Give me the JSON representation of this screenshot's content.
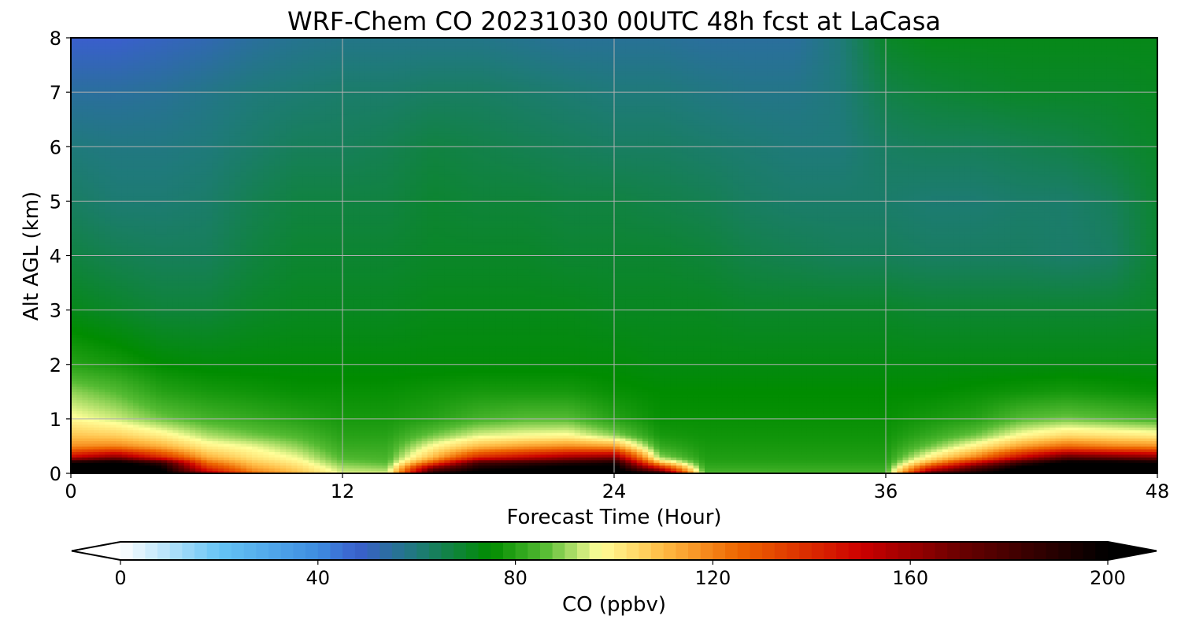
{
  "chart_data": {
    "type": "heatmap",
    "title": "WRF-Chem CO  20231030 00UTC 48h fcst at LaCasa",
    "xlabel": "Forecast Time (Hour)",
    "ylabel": "Alt AGL (km)",
    "xlim": [
      0,
      48
    ],
    "ylim": [
      0,
      8
    ],
    "x_ticks": [
      0,
      12,
      24,
      36,
      48
    ],
    "x_tick_labels": [
      "0",
      "12",
      "24",
      "36",
      "48"
    ],
    "y_ticks": [
      0,
      1,
      2,
      3,
      4,
      5,
      6,
      7,
      8
    ],
    "y_tick_labels": [
      "0",
      "1",
      "2",
      "3",
      "4",
      "5",
      "6",
      "7",
      "8"
    ],
    "grid": true,
    "colorbar": {
      "label": "CO  (ppbv)",
      "orientation": "horizontal",
      "placement": "bottom",
      "vmin": 0,
      "vmax": 200,
      "extend": "both",
      "ticks": [
        0,
        40,
        80,
        120,
        160,
        200
      ],
      "tick_labels": [
        "0",
        "40",
        "80",
        "120",
        "160",
        "200"
      ],
      "color_stops": [
        {
          "value": 0,
          "color": "#ffffff"
        },
        {
          "value": 20,
          "color": "#66c4f5"
        },
        {
          "value": 40,
          "color": "#3d8de0"
        },
        {
          "value": 48,
          "color": "#3a5fcd"
        },
        {
          "value": 60,
          "color": "#1f7a7a"
        },
        {
          "value": 75,
          "color": "#008c00"
        },
        {
          "value": 86,
          "color": "#55bb33"
        },
        {
          "value": 97,
          "color": "#ffff99"
        },
        {
          "value": 110,
          "color": "#ffbb44"
        },
        {
          "value": 125,
          "color": "#ee6600"
        },
        {
          "value": 150,
          "color": "#cc0000"
        },
        {
          "value": 170,
          "color": "#6a0000"
        },
        {
          "value": 200,
          "color": "#000000"
        }
      ]
    },
    "field": {
      "x_hours": [
        0,
        2,
        4,
        6,
        8,
        10,
        12,
        14,
        16,
        18,
        20,
        22,
        24,
        26,
        28,
        30,
        32,
        34,
        36,
        38,
        40,
        42,
        44,
        46,
        48
      ],
      "alt_km": [
        0,
        0.1,
        0.2,
        0.3,
        0.5,
        0.7,
        1.0,
        1.5,
        2.0,
        3.0,
        4.0,
        5.0,
        6.0,
        7.0,
        8.0
      ],
      "co_ppbv": [
        [
          210,
          210,
          205,
          160,
          125,
          110,
          95,
          95,
          190,
          205,
          205,
          210,
          210,
          190,
          85,
          85,
          84,
          84,
          84,
          175,
          195,
          210,
          210,
          210,
          210
        ],
        [
          205,
          210,
          200,
          140,
          115,
          105,
          92,
          90,
          170,
          195,
          200,
          205,
          205,
          150,
          82,
          82,
          82,
          82,
          82,
          145,
          180,
          205,
          210,
          210,
          210
        ],
        [
          200,
          205,
          185,
          125,
          108,
          100,
          88,
          86,
          130,
          180,
          185,
          190,
          195,
          110,
          80,
          80,
          80,
          80,
          80,
          115,
          150,
          185,
          205,
          205,
          200
        ],
        [
          150,
          165,
          140,
          112,
          102,
          96,
          85,
          84,
          110,
          140,
          150,
          160,
          165,
          90,
          79,
          79,
          79,
          79,
          79,
          100,
          120,
          150,
          175,
          170,
          165
        ],
        [
          118,
          120,
          112,
          100,
          96,
          90,
          82,
          82,
          98,
          110,
          115,
          118,
          115,
          82,
          78,
          78,
          78,
          78,
          78,
          88,
          100,
          115,
          125,
          120,
          118
        ],
        [
          108,
          106,
          100,
          92,
          88,
          85,
          80,
          80,
          88,
          95,
          97,
          98,
          90,
          78,
          77,
          77,
          77,
          77,
          77,
          82,
          88,
          98,
          104,
          102,
          100
        ],
        [
          98,
          94,
          88,
          84,
          82,
          80,
          78,
          78,
          80,
          84,
          86,
          86,
          80,
          76,
          76,
          76,
          76,
          76,
          76,
          78,
          80,
          86,
          88,
          86,
          84
        ],
        [
          90,
          86,
          80,
          78,
          77,
          76,
          76,
          76,
          77,
          78,
          78,
          78,
          76,
          75,
          75,
          75,
          75,
          75,
          75,
          75,
          76,
          77,
          78,
          77,
          76
        ],
        [
          80,
          78,
          75,
          74,
          74,
          74,
          74,
          74,
          74,
          74,
          74,
          74,
          74,
          73,
          73,
          73,
          73,
          73,
          73,
          73,
          73,
          73,
          73,
          73,
          73
        ],
        [
          72,
          70,
          68,
          68,
          70,
          71,
          71,
          71,
          72,
          72,
          72,
          72,
          71,
          71,
          71,
          70,
          70,
          70,
          70,
          69,
          69,
          69,
          69,
          69,
          70
        ],
        [
          67,
          65,
          64,
          64,
          67,
          69,
          69,
          69,
          70,
          70,
          70,
          69,
          69,
          69,
          68,
          66,
          65,
          64,
          64,
          63,
          63,
          63,
          62,
          63,
          69
        ],
        [
          63,
          61,
          61,
          62,
          65,
          67,
          67,
          67,
          69,
          68,
          68,
          67,
          67,
          66,
          65,
          63,
          62,
          62,
          62,
          61,
          61,
          62,
          62,
          64,
          69
        ],
        [
          60,
          59,
          59,
          60,
          62,
          64,
          64,
          65,
          67,
          66,
          65,
          64,
          63,
          63,
          62,
          61,
          60,
          60,
          63,
          64,
          64,
          65,
          66,
          68,
          70
        ],
        [
          55,
          55,
          56,
          58,
          60,
          61,
          62,
          62,
          63,
          63,
          62,
          61,
          60,
          60,
          59,
          58,
          58,
          60,
          66,
          68,
          69,
          70,
          70,
          70,
          71
        ],
        [
          48,
          48,
          50,
          52,
          55,
          57,
          58,
          58,
          58,
          58,
          57,
          56,
          56,
          56,
          55,
          55,
          55,
          60,
          70,
          72,
          72,
          72,
          72,
          72,
          72
        ]
      ]
    }
  }
}
